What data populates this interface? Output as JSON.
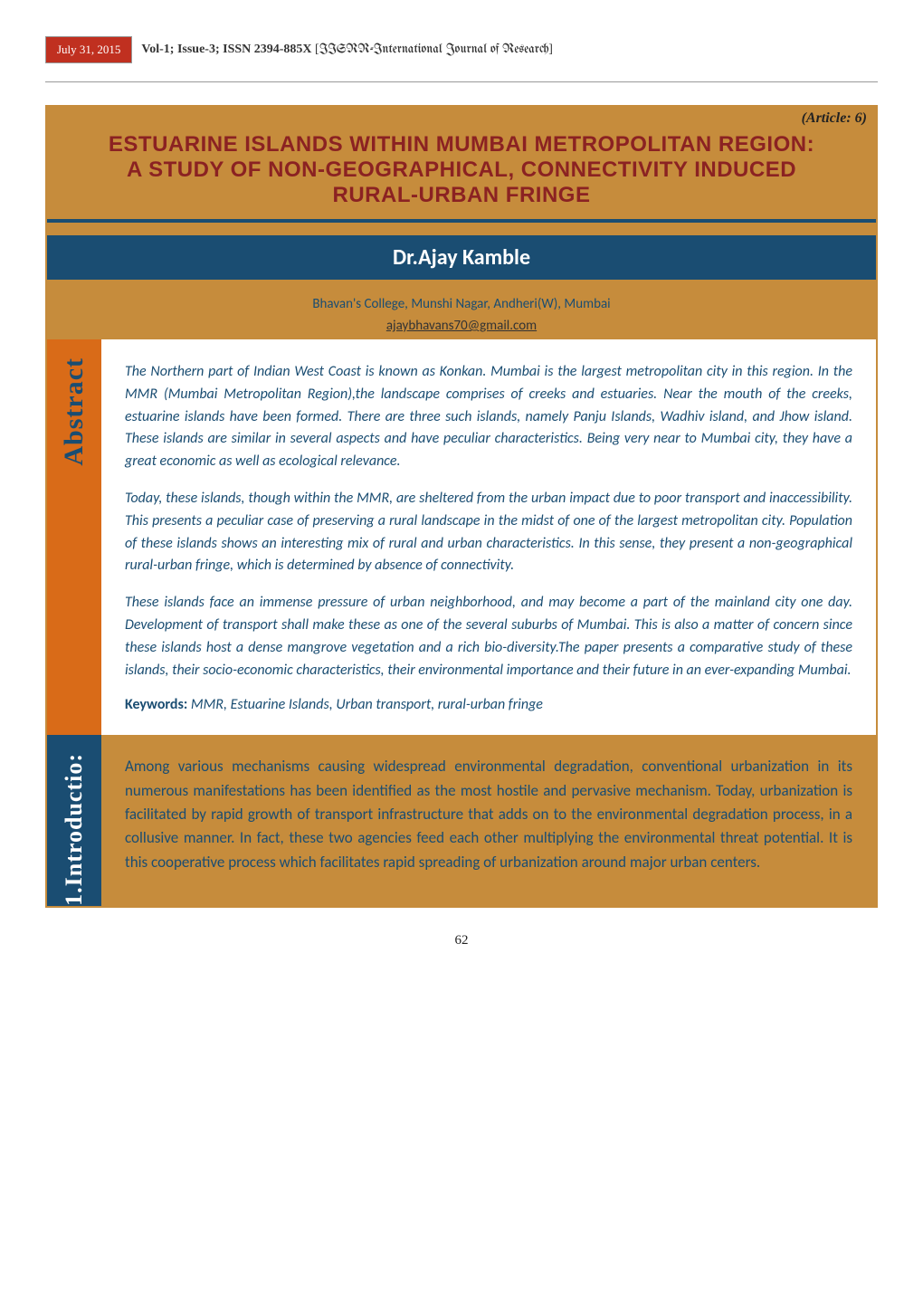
{
  "header": {
    "date": "July 31, 2015",
    "vol_issue": "Vol-1; Issue-3; ISSN 2394-885X",
    "journal_bracket_open": "[",
    "journal_name": "IISRR-International Journal of Research",
    "journal_bracket_close": "]"
  },
  "article_label": "(Article: 6)",
  "title": {
    "line1": "Estuarine Islands within Mumbai Metropolitan Region:",
    "line2": "A study of non-geographical, connectivity induced",
    "line3": "Rural-Urban fringe"
  },
  "author": "Dr.Ajay Kamble",
  "affiliation": "Bhavan's College, Munshi Nagar, Andheri(W), Mumbai",
  "email": "ajaybhavans70@gmail.com",
  "sections": {
    "abstract_label": "Abstract",
    "intro_label": "1.Introductio:"
  },
  "abstract": {
    "p1": "The Northern part of Indian West Coast is known as Konkan. Mumbai is the largest metropolitan city in this region.  In the MMR (Mumbai Metropolitan Region),the landscape comprises of creeks and estuaries. Near the mouth of the creeks, estuarine islands have been formed. There are three such islands, namely Panju Islands, Wadhiv island, and Jhow island.  These islands are similar in several aspects and have peculiar characteristics. Being very near to Mumbai city, they have a great economic as well as ecological relevance.",
    "p2": "Today, these islands, though within the MMR, are sheltered from the urban impact due to poor transport and inaccessibility. This presents a peculiar case of preserving a rural landscape in the midst of one of the largest metropolitan city. Population of these islands shows an interesting mix of rural and urban characteristics. In this sense, they present a non-geographical rural-urban fringe, which is determined by absence of connectivity.",
    "p3": "These islands face an immense pressure of urban neighborhood, and may become a part of the mainland city one day.  Development of transport shall make these as one of the several suburbs of Mumbai. This is also a matter of concern since these islands host a dense mangrove vegetation and a rich bio-diversity.The paper presents a comparative study of these islands, their socio-economic characteristics, their environmental importance and their future in an ever-expanding Mumbai.",
    "keywords_label": "Keywords:",
    "keywords_value": " MMR, Estuarine Islands, Urban transport, rural-urban fringe"
  },
  "intro": {
    "p1": "Among various mechanisms causing widespread environmental degradation, conventional urbanization in its numerous manifestations has been identified as the most hostile and pervasive mechanism. Today, urbanization is facilitated by rapid growth of transport infrastructure that adds on to the environmental degradation process, in a collusive manner. In fact, these two agencies feed each other multiplying the environmental threat potential. It is this cooperative process which facilitates rapid spreading of urbanization around major urban centers."
  },
  "page_number": "62",
  "colors": {
    "gold": "#c68c3c",
    "orange": "#d96b18",
    "blue": "#1a4d72",
    "maroon": "#8b2222",
    "red_box": "#c03020"
  }
}
